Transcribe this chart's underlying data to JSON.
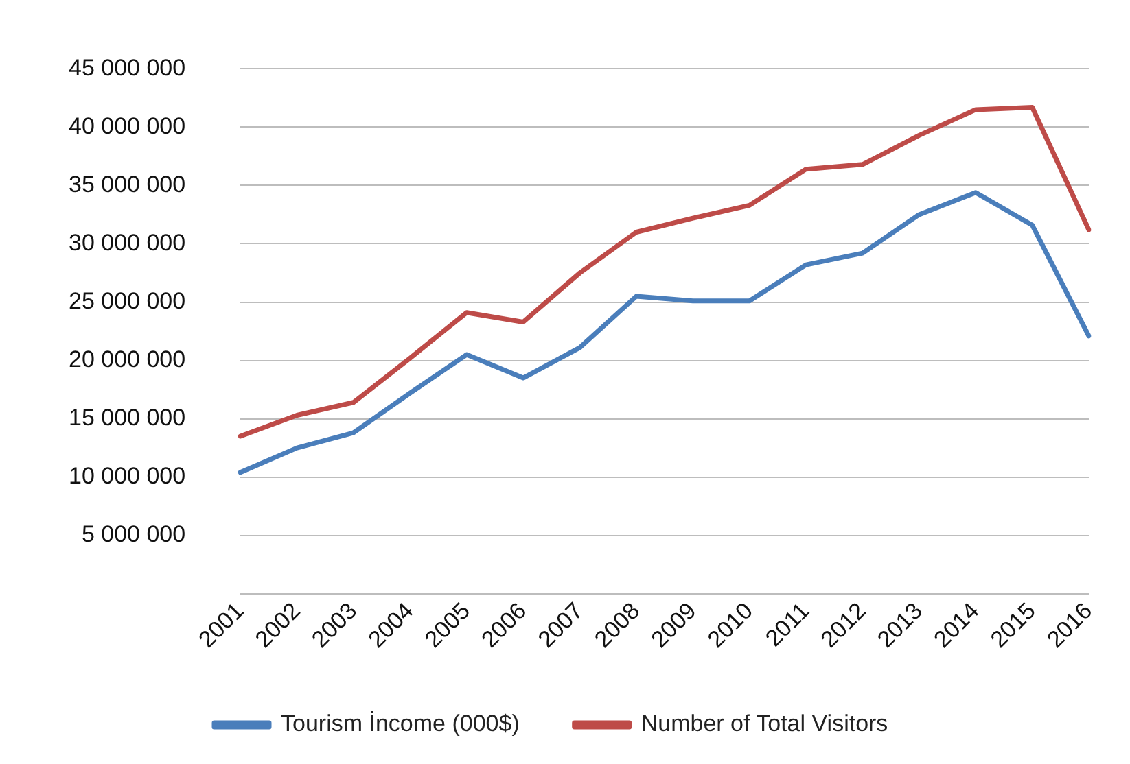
{
  "chart_data": {
    "type": "line",
    "categories": [
      "2001",
      "2002",
      "2003",
      "2004",
      "2005",
      "2006",
      "2007",
      "2008",
      "2009",
      "2010",
      "2011",
      "2012",
      "2013",
      "2014",
      "2015",
      "2016"
    ],
    "series": [
      {
        "name": "Tourism İncome (000$)",
        "color": "#4a7ebb",
        "values": [
          10400000,
          12500000,
          13800000,
          17200000,
          20500000,
          18500000,
          21100000,
          25500000,
          25100000,
          25100000,
          28200000,
          29200000,
          32500000,
          34400000,
          31600000,
          22100000
        ]
      },
      {
        "name": "Number of Total Visitors",
        "color": "#be4b48",
        "values": [
          13500000,
          15300000,
          16400000,
          20200000,
          24100000,
          23300000,
          27500000,
          31000000,
          32200000,
          33300000,
          36400000,
          36800000,
          39300000,
          41500000,
          41700000,
          31200000
        ]
      }
    ],
    "ylim": [
      0,
      45000000
    ],
    "yticks": [
      {
        "value": 0,
        "label": null
      },
      {
        "value": 5000000,
        "label": "5 000 000"
      },
      {
        "value": 10000000,
        "label": "10 000 000"
      },
      {
        "value": 15000000,
        "label": "15 000 000"
      },
      {
        "value": 20000000,
        "label": "20 000 000"
      },
      {
        "value": 25000000,
        "label": "25 000 000"
      },
      {
        "value": 30000000,
        "label": "30 000 000"
      },
      {
        "value": 35000000,
        "label": "35 000 000"
      },
      {
        "value": 40000000,
        "label": "40 000 000"
      },
      {
        "value": 45000000,
        "label": "45 000 000"
      }
    ],
    "grid": "y",
    "legend": "bottom",
    "marker": "none",
    "line_style": "solid"
  }
}
